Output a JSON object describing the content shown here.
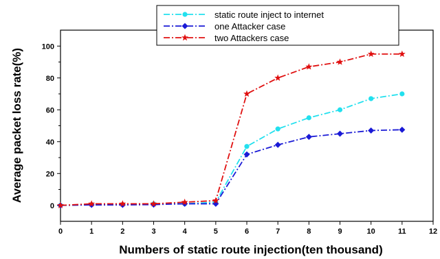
{
  "chart_data": {
    "type": "line",
    "xlabel": "Numbers of static route injection(ten thousand)",
    "ylabel": "Average packet loss rate(%)",
    "xlim": [
      0,
      12
    ],
    "ylim": [
      -10,
      110
    ],
    "x_ticks": [
      0,
      1,
      2,
      3,
      4,
      5,
      6,
      7,
      8,
      9,
      10,
      11,
      12
    ],
    "y_ticks": [
      0,
      20,
      40,
      60,
      80,
      100
    ],
    "x_tick_labels": [
      "0",
      "1",
      "2",
      "3",
      "4",
      "5",
      "6",
      "7",
      "8",
      "9",
      "10",
      "11",
      "12"
    ],
    "y_tick_labels": [
      "0",
      "20",
      "40",
      "60",
      "80",
      "100"
    ],
    "grid": false,
    "legend_position": "top-right",
    "x": [
      0,
      1,
      2,
      3,
      4,
      5,
      6,
      7,
      8,
      9,
      10,
      11
    ],
    "series": [
      {
        "name": "static route inject to internet",
        "color": "#22e0ee",
        "marker": "circle",
        "values": [
          0,
          0.5,
          0.5,
          1,
          1,
          2,
          37,
          48,
          55,
          60,
          67,
          70
        ]
      },
      {
        "name": "one Attacker case",
        "color": "#1a1ad6",
        "marker": "diamond",
        "values": [
          0,
          0.3,
          0.3,
          0.5,
          1,
          1,
          32,
          38,
          43,
          45,
          47,
          47.5
        ]
      },
      {
        "name": "two Attackers case",
        "color": "#e01010",
        "marker": "star",
        "values": [
          0,
          1,
          1,
          1,
          2,
          3,
          70,
          80,
          87,
          90,
          95,
          95
        ]
      }
    ]
  }
}
